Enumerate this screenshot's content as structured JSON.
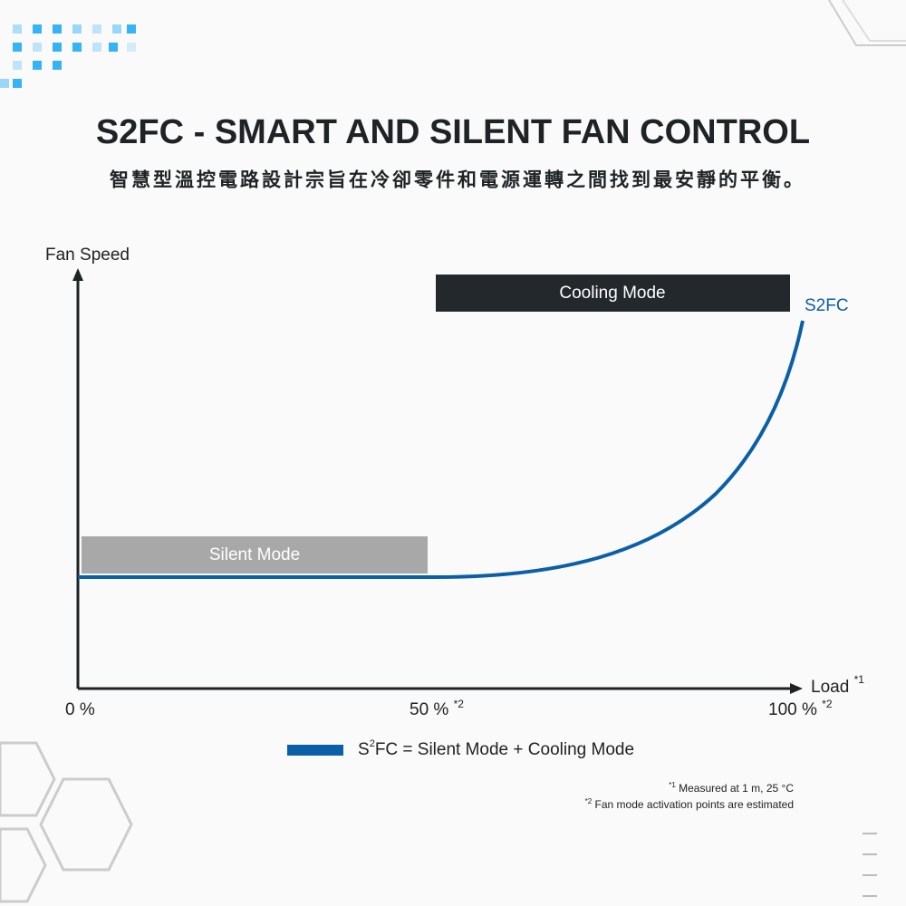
{
  "header": {
    "title": "S2FC - SMART AND SILENT FAN CONTROL",
    "subtitle": "智慧型溫控電路設計宗旨在冷卻零件和電源運轉之間找到最安靜的平衡。"
  },
  "diagram": {
    "y_axis_label": "Fan Speed",
    "x_axis_label": "Load",
    "x_axis_label_mark": "*1",
    "x_ticks": [
      {
        "text": "0 %"
      },
      {
        "text": "50 %",
        "mark": "*2"
      },
      {
        "text": "100 %",
        "mark": "*2"
      }
    ],
    "cooling_mode": "Cooling Mode",
    "silent_mode": "Silent Mode",
    "curve_label": "S2FC",
    "legend": {
      "s": "S",
      "sup": "2",
      "rest": "FC = Silent Mode + Cooling Mode"
    }
  },
  "footnotes": [
    {
      "mark": "*1",
      "text": "Measured at 1 m, 25 °C"
    },
    {
      "mark": "*2",
      "text": "Fan mode activation points are estimated"
    }
  ]
}
